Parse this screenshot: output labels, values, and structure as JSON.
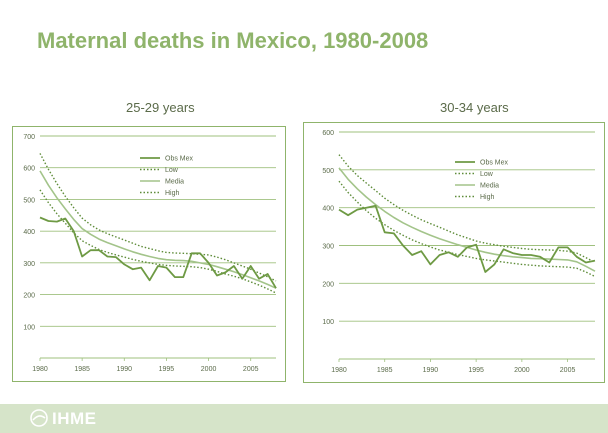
{
  "page": {
    "title": "Maternal deaths in Mexico, 1980-2008"
  },
  "logo": {
    "text": "IHME"
  },
  "colors": {
    "obs": "#6e9a44",
    "low": "#5e8c39",
    "media": "#a3c48a",
    "high": "#5e8c39",
    "frame": "#8fb46b",
    "grid": "#9fc07e",
    "tick": "#5b6b4a"
  },
  "chart_data": [
    {
      "type": "line",
      "title": "25-29 years",
      "xlabel": "",
      "ylabel": "",
      "xlim": [
        1980,
        2008
      ],
      "ylim": [
        0,
        700
      ],
      "yticks": [
        100,
        200,
        300,
        400,
        500,
        600,
        700
      ],
      "xticks": [
        1980,
        1985,
        1990,
        1995,
        2000,
        2005
      ],
      "grid": true,
      "legend_position": "top-center",
      "x": [
        1980,
        1981,
        1982,
        1983,
        1984,
        1985,
        1986,
        1987,
        1988,
        1989,
        1990,
        1991,
        1992,
        1993,
        1994,
        1995,
        1996,
        1997,
        1998,
        1999,
        2000,
        2001,
        2002,
        2003,
        2004,
        2005,
        2006,
        2007,
        2008
      ],
      "series": [
        {
          "name": "Obs Mex",
          "style": "solid",
          "values": [
            443,
            432,
            430,
            440,
            400,
            320,
            340,
            340,
            320,
            318,
            295,
            280,
            285,
            245,
            290,
            285,
            255,
            255,
            330,
            330,
            300,
            260,
            270,
            290,
            250,
            290,
            250,
            265,
            220
          ]
        },
        {
          "name": "Low",
          "style": "dotted",
          "values": [
            530,
            490,
            455,
            425,
            395,
            370,
            355,
            342,
            333,
            325,
            318,
            311,
            305,
            300,
            295,
            292,
            290,
            289,
            288,
            285,
            280,
            273,
            265,
            258,
            250,
            240,
            230,
            218,
            205
          ]
        },
        {
          "name": "Media",
          "style": "solid",
          "values": [
            590,
            545,
            505,
            470,
            437,
            408,
            390,
            375,
            364,
            354,
            344,
            335,
            327,
            320,
            314,
            310,
            308,
            307,
            305,
            300,
            295,
            288,
            280,
            272,
            263,
            253,
            243,
            232,
            220
          ]
        },
        {
          "name": "High",
          "style": "dotted",
          "values": [
            645,
            595,
            550,
            510,
            474,
            441,
            420,
            404,
            392,
            382,
            372,
            362,
            352,
            345,
            338,
            333,
            331,
            330,
            329,
            327,
            325,
            318,
            310,
            300,
            290,
            280,
            268,
            256,
            243
          ]
        }
      ]
    },
    {
      "type": "line",
      "title": "30-34 years",
      "xlabel": "",
      "ylabel": "",
      "xlim": [
        1980,
        2008
      ],
      "ylim": [
        0,
        600
      ],
      "yticks": [
        100,
        200,
        300,
        400,
        500,
        600
      ],
      "xticks": [
        1980,
        1985,
        1990,
        1995,
        2000,
        2005
      ],
      "grid": true,
      "legend_position": "top-center",
      "x": [
        1980,
        1981,
        1982,
        1983,
        1984,
        1985,
        1986,
        1987,
        1988,
        1989,
        1990,
        1991,
        1992,
        1993,
        1994,
        1995,
        1996,
        1997,
        1998,
        1999,
        2000,
        2001,
        2002,
        2003,
        2004,
        2005,
        2006,
        2007,
        2008
      ],
      "series": [
        {
          "name": "Obs Mex",
          "style": "solid",
          "values": [
            395,
            380,
            395,
            400,
            405,
            335,
            332,
            300,
            275,
            285,
            250,
            275,
            282,
            270,
            295,
            302,
            230,
            250,
            290,
            280,
            275,
            275,
            270,
            255,
            295,
            295,
            270,
            255,
            260
          ]
        },
        {
          "name": "Low",
          "style": "dotted",
          "values": [
            470,
            440,
            415,
            392,
            372,
            355,
            340,
            327,
            315,
            305,
            296,
            288,
            282,
            276,
            271,
            266,
            262,
            259,
            256,
            253,
            250,
            248,
            246,
            245,
            244,
            243,
            240,
            230,
            218
          ]
        },
        {
          "name": "Media",
          "style": "solid",
          "values": [
            505,
            475,
            450,
            428,
            408,
            390,
            374,
            360,
            348,
            337,
            327,
            318,
            310,
            302,
            295,
            288,
            282,
            277,
            273,
            270,
            268,
            266,
            265,
            264,
            263,
            262,
            257,
            245,
            232
          ]
        },
        {
          "name": "High",
          "style": "dotted",
          "values": [
            540,
            510,
            485,
            465,
            445,
            425,
            408,
            393,
            380,
            368,
            358,
            348,
            338,
            328,
            320,
            312,
            306,
            302,
            298,
            295,
            292,
            290,
            289,
            288,
            287,
            285,
            280,
            268,
            255
          ]
        }
      ]
    }
  ]
}
